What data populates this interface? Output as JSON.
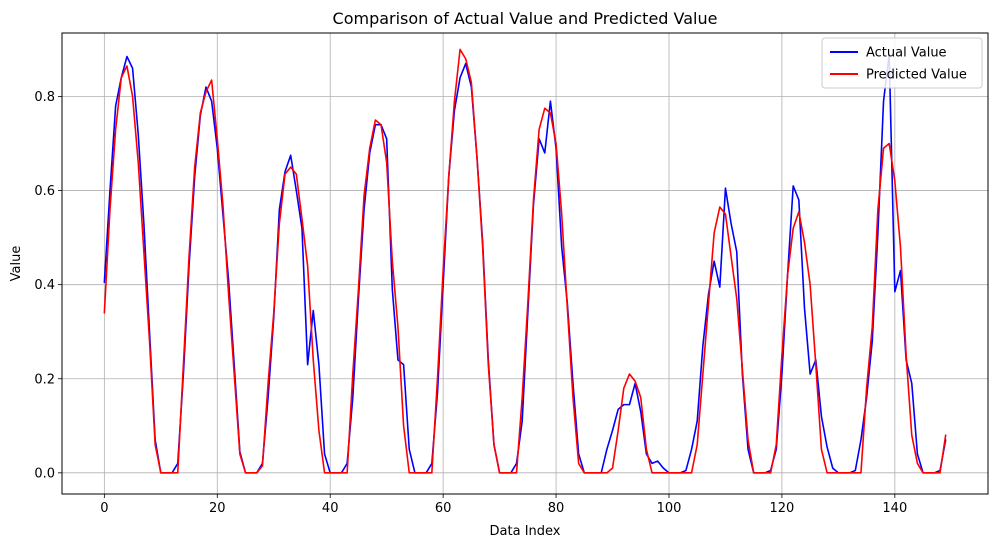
{
  "chart_data": {
    "type": "line",
    "title": "Comparison of Actual Value and Predicted Value",
    "xlabel": "Data Index",
    "ylabel": "Value",
    "xlim": [
      -7.5,
      156.5
    ],
    "ylim": [
      -0.045,
      0.935
    ],
    "xticks": [
      0,
      20,
      40,
      60,
      80,
      100,
      120,
      140
    ],
    "yticks": [
      0.0,
      0.2,
      0.4,
      0.6,
      0.8
    ],
    "xtick_labels": [
      "0",
      "20",
      "40",
      "60",
      "80",
      "100",
      "120",
      "140"
    ],
    "ytick_labels": [
      "0.0",
      "0.2",
      "0.4",
      "0.6",
      "0.8"
    ],
    "grid": true,
    "legend_position": "top-right",
    "series": [
      {
        "name": "Actual Value",
        "color": "#0000ff",
        "values": [
          0.405,
          0.6,
          0.78,
          0.84,
          0.885,
          0.86,
          0.72,
          0.53,
          0.3,
          0.07,
          0.0,
          0.0,
          0.0,
          0.02,
          0.21,
          0.44,
          0.63,
          0.76,
          0.82,
          0.79,
          0.69,
          0.55,
          0.41,
          0.23,
          0.045,
          0.0,
          0.0,
          0.0,
          0.02,
          0.16,
          0.33,
          0.56,
          0.64,
          0.675,
          0.6,
          0.52,
          0.23,
          0.345,
          0.23,
          0.04,
          0.0,
          0.0,
          0.0,
          0.02,
          0.16,
          0.37,
          0.56,
          0.68,
          0.74,
          0.74,
          0.71,
          0.39,
          0.24,
          0.23,
          0.05,
          0.0,
          0.0,
          0.0,
          0.02,
          0.17,
          0.4,
          0.63,
          0.77,
          0.84,
          0.87,
          0.82,
          0.67,
          0.49,
          0.24,
          0.06,
          0.0,
          0.0,
          0.0,
          0.02,
          0.11,
          0.34,
          0.57,
          0.71,
          0.68,
          0.79,
          0.69,
          0.48,
          0.36,
          0.19,
          0.04,
          0.0,
          0.0,
          0.0,
          0.0,
          0.05,
          0.09,
          0.135,
          0.145,
          0.145,
          0.19,
          0.13,
          0.04,
          0.02,
          0.025,
          0.01,
          0.0,
          0.0,
          0.0,
          0.005,
          0.05,
          0.11,
          0.27,
          0.38,
          0.45,
          0.395,
          0.605,
          0.53,
          0.47,
          0.21,
          0.05,
          0.0,
          0.0,
          0.0,
          0.005,
          0.05,
          0.21,
          0.42,
          0.61,
          0.58,
          0.35,
          0.21,
          0.24,
          0.12,
          0.055,
          0.01,
          0.0,
          0.0,
          0.0,
          0.005,
          0.07,
          0.16,
          0.28,
          0.51,
          0.79,
          0.89,
          0.385,
          0.43,
          0.24,
          0.19,
          0.04,
          0.0,
          0.0,
          0.0,
          0.005,
          0.07
        ]
      },
      {
        "name": "Predicted Value",
        "color": "#ff0000",
        "values": [
          0.34,
          0.56,
          0.73,
          0.84,
          0.865,
          0.8,
          0.66,
          0.47,
          0.28,
          0.06,
          0.0,
          0.0,
          0.0,
          0.0,
          0.23,
          0.46,
          0.65,
          0.765,
          0.81,
          0.835,
          0.71,
          0.57,
          0.38,
          0.21,
          0.04,
          0.0,
          0.0,
          0.0,
          0.015,
          0.19,
          0.34,
          0.53,
          0.635,
          0.65,
          0.635,
          0.54,
          0.44,
          0.24,
          0.09,
          0.0,
          0.0,
          0.0,
          0.0,
          0.0,
          0.21,
          0.39,
          0.59,
          0.69,
          0.75,
          0.74,
          0.66,
          0.45,
          0.31,
          0.1,
          0.0,
          0.0,
          0.0,
          0.0,
          0.0,
          0.2,
          0.43,
          0.63,
          0.79,
          0.9,
          0.88,
          0.83,
          0.67,
          0.48,
          0.23,
          0.06,
          0.0,
          0.0,
          0.0,
          0.0,
          0.16,
          0.36,
          0.58,
          0.73,
          0.775,
          0.765,
          0.7,
          0.55,
          0.35,
          0.16,
          0.02,
          0.0,
          0.0,
          0.0,
          0.0,
          0.0,
          0.01,
          0.09,
          0.18,
          0.21,
          0.195,
          0.16,
          0.05,
          0.0,
          0.0,
          0.0,
          0.0,
          0.0,
          0.0,
          0.0,
          0.0,
          0.06,
          0.21,
          0.36,
          0.51,
          0.565,
          0.55,
          0.46,
          0.37,
          0.22,
          0.07,
          0.0,
          0.0,
          0.0,
          0.0,
          0.06,
          0.25,
          0.42,
          0.52,
          0.555,
          0.49,
          0.4,
          0.23,
          0.05,
          0.0,
          0.0,
          0.0,
          0.0,
          0.0,
          0.0,
          0.0,
          0.18,
          0.31,
          0.56,
          0.69,
          0.7,
          0.62,
          0.48,
          0.25,
          0.08,
          0.02,
          0.0,
          0.0,
          0.0,
          0.0,
          0.08
        ]
      }
    ]
  }
}
